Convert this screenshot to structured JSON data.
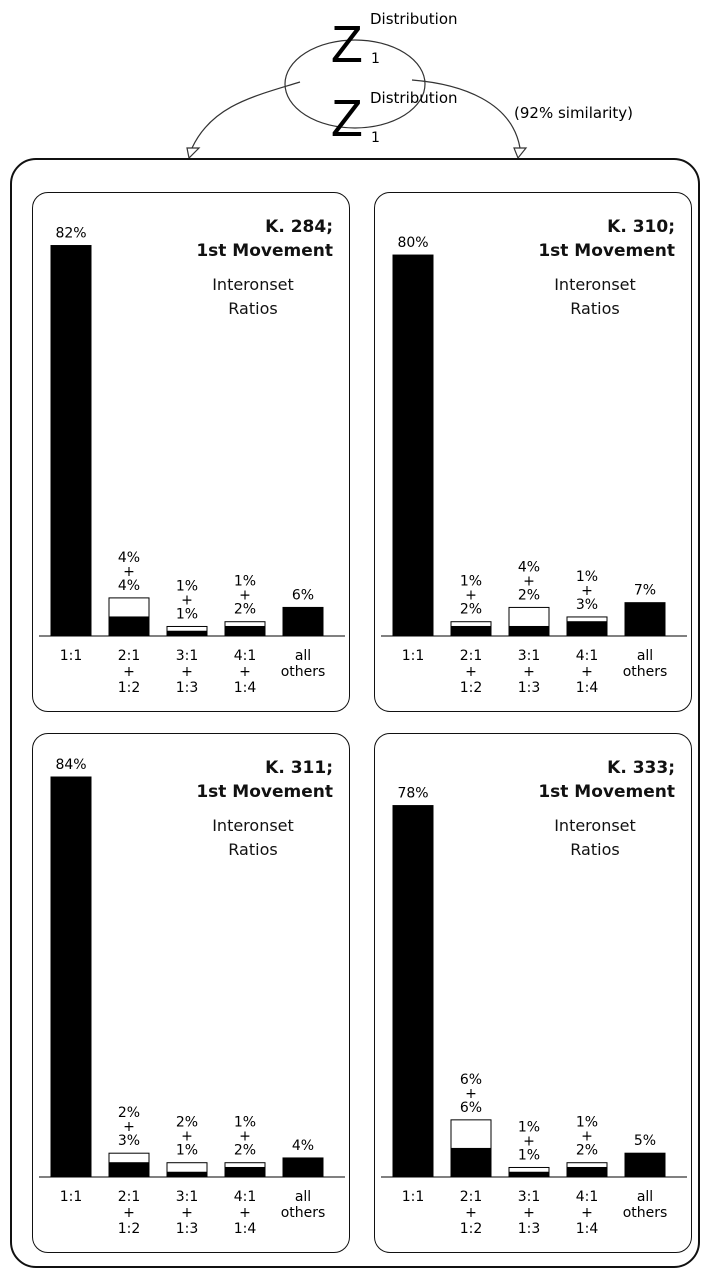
{
  "header": {
    "distribution_label": "Distribution",
    "z_symbol": "Z",
    "subscript": "1",
    "similarity": "(92% similarity)"
  },
  "chart_data": [
    {
      "type": "bar",
      "stacked": true,
      "title_line1": "K. 284;",
      "title_line2": "1st Movement",
      "subtitle_line1": "Interonset",
      "subtitle_line2": "Ratios",
      "categories": [
        [
          "1:1"
        ],
        [
          "2:1",
          "+",
          "1:2"
        ],
        [
          "3:1",
          "+",
          "1:3"
        ],
        [
          "4:1",
          "+",
          "1:4"
        ],
        [
          "all",
          "others"
        ]
      ],
      "series": [
        {
          "color": "#000000",
          "values": [
            82,
            4,
            1,
            2,
            6
          ]
        },
        {
          "color": "#ffffff",
          "values": [
            0,
            4,
            1,
            1,
            0
          ]
        }
      ],
      "data_labels": [
        [
          "82%"
        ],
        [
          "4%",
          "+",
          "4%"
        ],
        [
          "1%",
          "+",
          "1%"
        ],
        [
          "1%",
          "+",
          "2%"
        ],
        [
          "6%"
        ]
      ],
      "ylim": [
        0,
        84
      ]
    },
    {
      "type": "bar",
      "stacked": true,
      "title_line1": "K. 310;",
      "title_line2": "1st Movement",
      "subtitle_line1": "Interonset",
      "subtitle_line2": "Ratios",
      "categories": [
        [
          "1:1"
        ],
        [
          "2:1",
          "+",
          "1:2"
        ],
        [
          "3:1",
          "+",
          "1:3"
        ],
        [
          "4:1",
          "+",
          "1:4"
        ],
        [
          "all",
          "others"
        ]
      ],
      "series": [
        {
          "color": "#000000",
          "values": [
            80,
            2,
            2,
            3,
            7
          ]
        },
        {
          "color": "#ffffff",
          "values": [
            0,
            1,
            4,
            1,
            0
          ]
        }
      ],
      "data_labels": [
        [
          "80%"
        ],
        [
          "1%",
          "+",
          "2%"
        ],
        [
          "4%",
          "+",
          "2%"
        ],
        [
          "1%",
          "+",
          "3%"
        ],
        [
          "7%"
        ]
      ],
      "ylim": [
        0,
        84
      ]
    },
    {
      "type": "bar",
      "stacked": true,
      "title_line1": "K. 311;",
      "title_line2": "1st Movement",
      "subtitle_line1": "Interonset",
      "subtitle_line2": "Ratios",
      "categories": [
        [
          "1:1"
        ],
        [
          "2:1",
          "+",
          "1:2"
        ],
        [
          "3:1",
          "+",
          "1:3"
        ],
        [
          "4:1",
          "+",
          "1:4"
        ],
        [
          "all",
          "others"
        ]
      ],
      "series": [
        {
          "color": "#000000",
          "values": [
            84,
            3,
            1,
            2,
            4
          ]
        },
        {
          "color": "#ffffff",
          "values": [
            0,
            2,
            2,
            1,
            0
          ]
        }
      ],
      "data_labels": [
        [
          "84%"
        ],
        [
          "2%",
          "+",
          "3%"
        ],
        [
          "2%",
          "+",
          "1%"
        ],
        [
          "1%",
          "+",
          "2%"
        ],
        [
          "4%"
        ]
      ],
      "ylim": [
        0,
        84
      ]
    },
    {
      "type": "bar",
      "stacked": true,
      "title_line1": "K. 333;",
      "title_line2": "1st Movement",
      "subtitle_line1": "Interonset",
      "subtitle_line2": "Ratios",
      "categories": [
        [
          "1:1"
        ],
        [
          "2:1",
          "+",
          "1:2"
        ],
        [
          "3:1",
          "+",
          "1:3"
        ],
        [
          "4:1",
          "+",
          "1:4"
        ],
        [
          "all",
          "others"
        ]
      ],
      "series": [
        {
          "color": "#000000",
          "values": [
            78,
            6,
            1,
            2,
            5
          ]
        },
        {
          "color": "#ffffff",
          "values": [
            0,
            6,
            1,
            1,
            0
          ]
        }
      ],
      "data_labels": [
        [
          "78%"
        ],
        [
          "6%",
          "+",
          "6%"
        ],
        [
          "1%",
          "+",
          "1%"
        ],
        [
          "1%",
          "+",
          "2%"
        ],
        [
          "5%"
        ]
      ],
      "ylim": [
        0,
        84
      ]
    }
  ]
}
